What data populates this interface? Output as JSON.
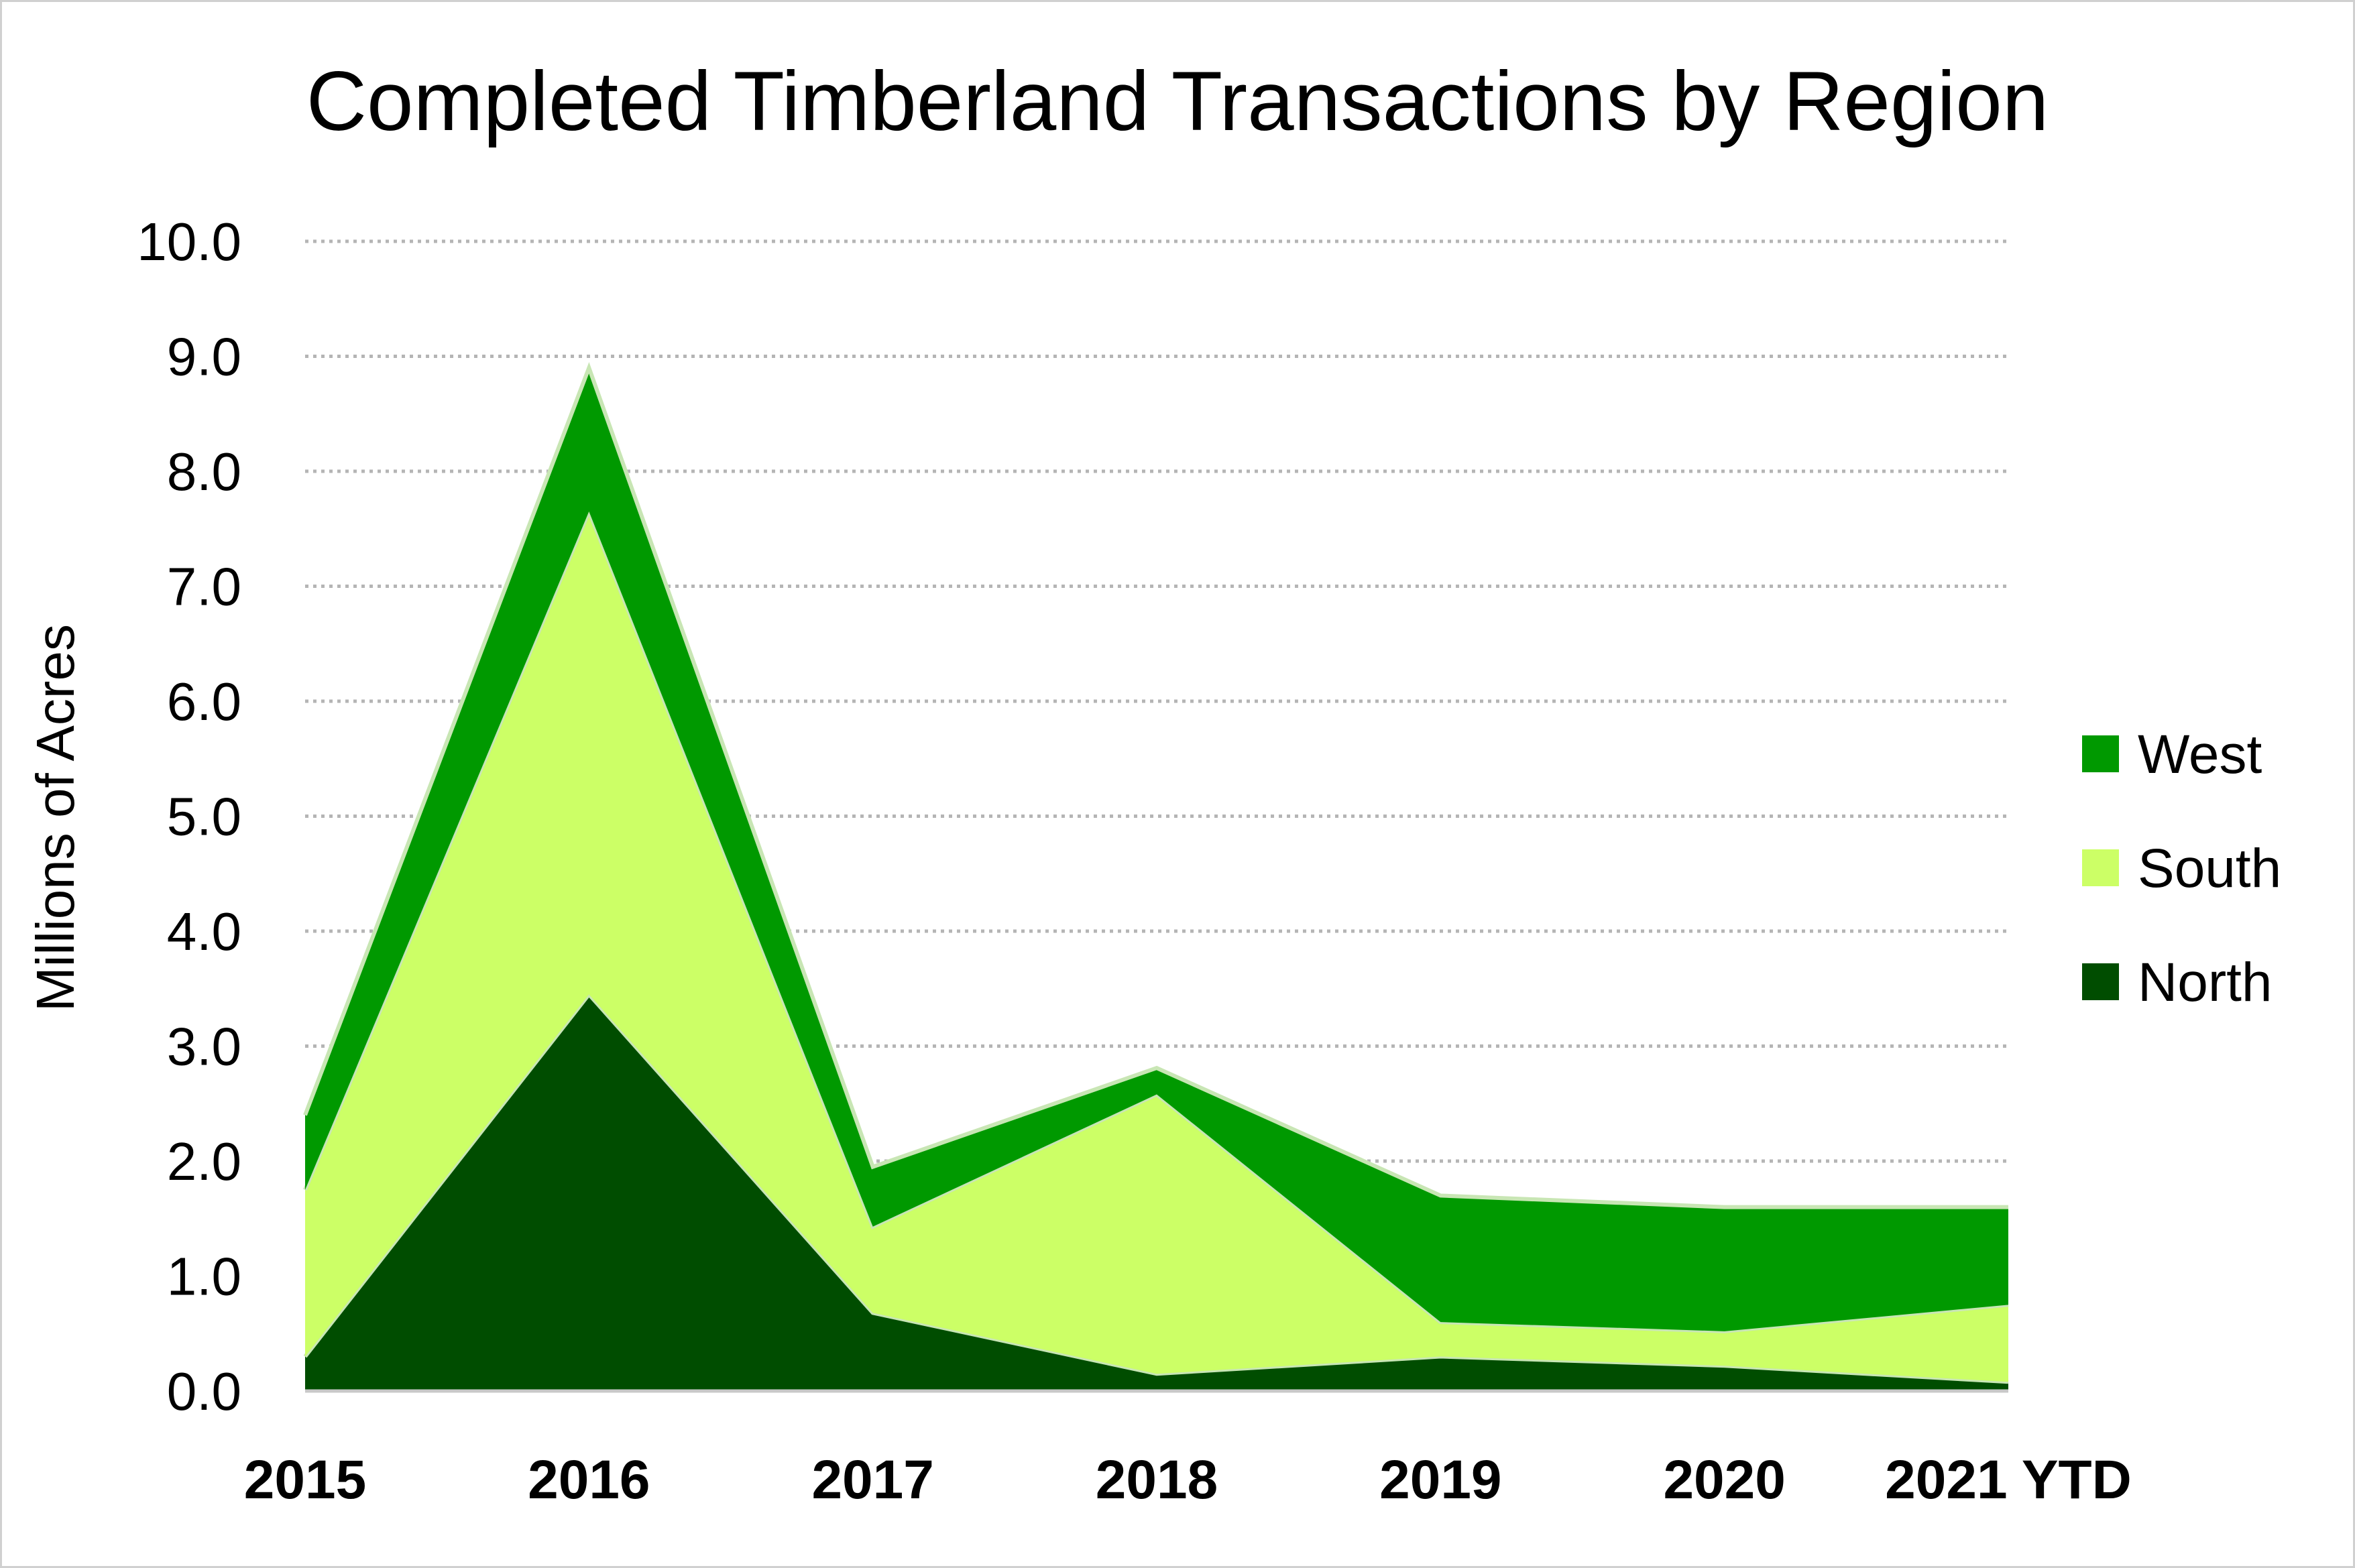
{
  "chart_data": {
    "type": "area",
    "stacked": true,
    "title": "Completed Timberland Transactions by Region",
    "ylabel": "Millions of Acres",
    "xlabel": "",
    "ylim": [
      0,
      10
    ],
    "yticks": [
      "0.0",
      "1.0",
      "2.0",
      "3.0",
      "4.0",
      "5.0",
      "6.0",
      "7.0",
      "8.0",
      "9.0",
      "10.0"
    ],
    "categories": [
      "2015",
      "2016",
      "2017",
      "2018",
      "2019",
      "2020",
      "2021 YTD"
    ],
    "grid": true,
    "legend_position": "right",
    "series": [
      {
        "name": "North",
        "color": "#004d00",
        "values": [
          0.3,
          3.45,
          0.68,
          0.15,
          0.3,
          0.22,
          0.08
        ]
      },
      {
        "name": "South",
        "color": "#ccff66",
        "values": [
          1.45,
          4.2,
          0.75,
          2.43,
          0.3,
          0.3,
          0.67
        ]
      },
      {
        "name": "West",
        "color": "#009900",
        "values": [
          0.65,
          1.25,
          0.52,
          0.23,
          1.1,
          1.08,
          0.85
        ]
      }
    ],
    "legend_order": [
      "West",
      "South",
      "North"
    ]
  }
}
